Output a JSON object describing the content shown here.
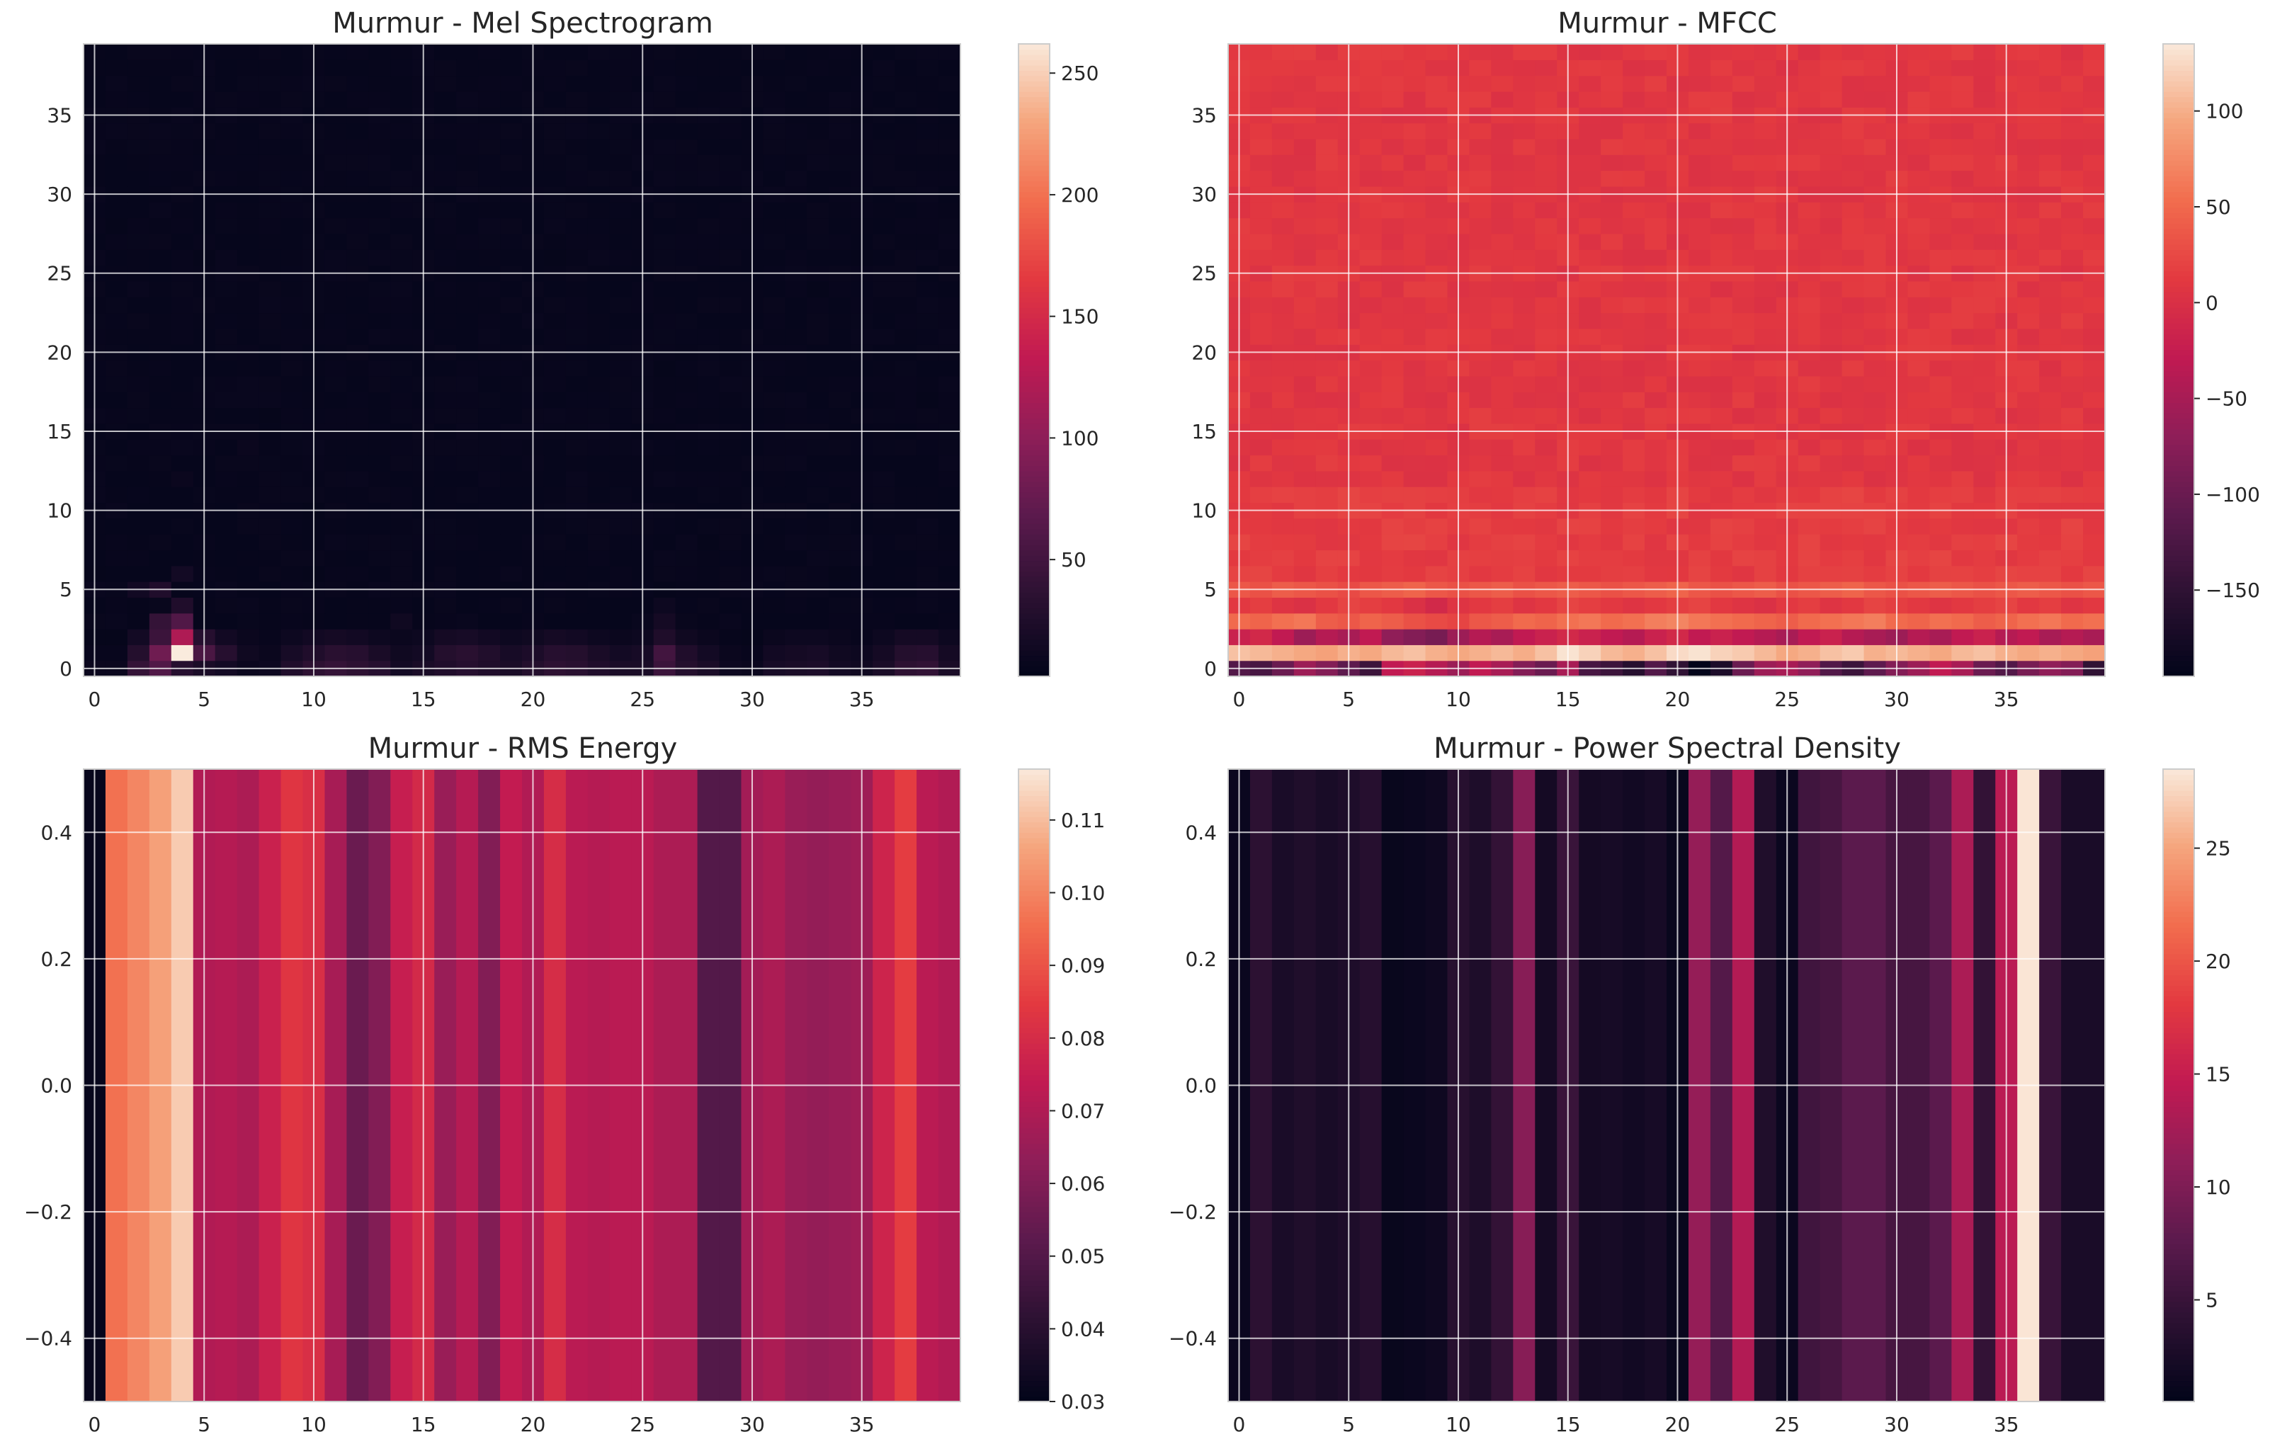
{
  "chart_data": [
    {
      "id": "mel",
      "type": "heatmap",
      "title": "Murmur - Mel Spectrogram",
      "xlabel": "",
      "ylabel": "",
      "xlim": [
        -0.5,
        39.5
      ],
      "ylim": [
        -0.5,
        39.5
      ],
      "xticks": [
        0,
        5,
        10,
        15,
        20,
        25,
        30,
        35
      ],
      "yticks": [
        0,
        5,
        10,
        15,
        20,
        25,
        30,
        35
      ],
      "ytick_labels": [
        "0",
        "5",
        "10",
        "15",
        "20",
        "25",
        "30",
        "35"
      ],
      "colorbar": {
        "range": [
          2,
          262
        ],
        "ticks": [
          50,
          100,
          150,
          200,
          250
        ],
        "labels": [
          "50",
          "100",
          "150",
          "200",
          "250"
        ]
      },
      "n_cols": 40,
      "n_rows": 40,
      "row0": [
        8,
        8,
        40,
        60,
        30,
        20,
        15,
        8,
        10,
        25,
        35,
        40,
        35,
        30,
        15,
        20,
        25,
        30,
        25,
        20,
        28,
        35,
        32,
        25,
        20,
        20,
        45,
        28,
        20,
        10,
        8,
        18,
        20,
        22,
        15,
        12,
        20,
        35,
        38,
        20
      ],
      "row1": [
        6,
        6,
        28,
        80,
        262,
        55,
        30,
        12,
        8,
        18,
        25,
        32,
        30,
        20,
        12,
        15,
        28,
        32,
        26,
        18,
        22,
        30,
        28,
        20,
        15,
        18,
        50,
        25,
        15,
        8,
        6,
        14,
        16,
        18,
        12,
        10,
        16,
        28,
        30,
        16
      ],
      "row2": [
        4,
        4,
        15,
        45,
        120,
        30,
        14,
        8,
        6,
        10,
        14,
        16,
        14,
        10,
        8,
        10,
        16,
        18,
        14,
        10,
        12,
        16,
        14,
        10,
        8,
        10,
        24,
        12,
        8,
        5,
        4,
        8,
        10,
        10,
        8,
        6,
        10,
        16,
        16,
        10
      ],
      "bright": [
        [
          4,
          3,
          60
        ],
        [
          3,
          3,
          40
        ],
        [
          4,
          4,
          25
        ],
        [
          3,
          5,
          25
        ],
        [
          4,
          6,
          15
        ],
        [
          2,
          5,
          14
        ],
        [
          26,
          3,
          16
        ],
        [
          26,
          4,
          10
        ],
        [
          7,
          14,
          8
        ],
        [
          7,
          20,
          6
        ],
        [
          4,
          12,
          8
        ],
        [
          14,
          3,
          12
        ]
      ],
      "base": 4
    },
    {
      "id": "mfcc",
      "type": "heatmap",
      "title": "Murmur - MFCC",
      "xlabel": "",
      "ylabel": "",
      "xlim": [
        -0.5,
        39.5
      ],
      "ylim": [
        -0.5,
        39.5
      ],
      "xticks": [
        0,
        5,
        10,
        15,
        20,
        25,
        30,
        35
      ],
      "yticks": [
        0,
        5,
        10,
        15,
        20,
        25,
        30,
        35
      ],
      "ytick_labels": [
        "0",
        "5",
        "10",
        "15",
        "20",
        "25",
        "30",
        "35"
      ],
      "colorbar": {
        "range": [
          -195,
          135
        ],
        "ticks": [
          -150,
          -100,
          -50,
          0,
          50,
          100
        ],
        "labels": [
          "−150",
          "−100",
          "−50",
          "0",
          "50",
          "100"
        ]
      },
      "n_cols": 40,
      "n_rows": 40,
      "row0": [
        -120,
        -130,
        -100,
        -60,
        -80,
        -110,
        -140,
        -30,
        -20,
        -40,
        -60,
        -30,
        -50,
        -80,
        -100,
        -50,
        -130,
        -140,
        -160,
        -120,
        -150,
        -195,
        -170,
        -100,
        -60,
        -50,
        -70,
        -120,
        -140,
        -110,
        -80,
        -60,
        -30,
        -50,
        -100,
        -120,
        -90,
        -70,
        -80,
        -150
      ],
      "row1": [
        110,
        105,
        100,
        95,
        90,
        100,
        95,
        105,
        110,
        100,
        95,
        100,
        105,
        98,
        110,
        130,
        120,
        105,
        100,
        110,
        125,
        130,
        120,
        115,
        105,
        95,
        100,
        110,
        115,
        100,
        105,
        100,
        95,
        105,
        110,
        100,
        95,
        100,
        95,
        90
      ],
      "row2": [
        -20,
        -10,
        -30,
        -60,
        -40,
        -50,
        -30,
        -70,
        -80,
        -90,
        -60,
        -40,
        -50,
        -30,
        -20,
        -10,
        -20,
        -30,
        -40,
        -20,
        -10,
        -30,
        -20,
        -30,
        -40,
        -50,
        -30,
        -20,
        -40,
        -50,
        -60,
        -40,
        -50,
        -30,
        -20,
        -40,
        -30,
        -50,
        -40,
        -50
      ],
      "row3": [
        50,
        45,
        55,
        60,
        40,
        35,
        45,
        40,
        30,
        25,
        20,
        35,
        40,
        50,
        45,
        55,
        60,
        50,
        55,
        65,
        70,
        60,
        55,
        50,
        45,
        40,
        50,
        55,
        60,
        65,
        50,
        45,
        55,
        50,
        40,
        45,
        55,
        60,
        50,
        55
      ],
      "row4": [
        10,
        15,
        5,
        0,
        10,
        20,
        15,
        10,
        0,
        -10,
        5,
        10,
        15,
        5,
        10,
        20,
        15,
        10,
        5,
        10,
        15,
        20,
        10,
        5,
        0,
        10,
        15,
        5,
        10,
        20,
        15,
        10,
        5,
        10,
        15,
        20,
        10,
        15,
        5,
        10
      ],
      "row5": [
        35,
        30,
        40,
        35,
        30,
        25,
        35,
        40,
        45,
        35,
        30,
        35,
        40,
        30,
        35,
        40,
        35,
        30,
        35,
        40,
        45,
        35,
        30,
        35,
        40,
        30,
        35,
        40,
        45,
        35,
        30,
        35,
        40,
        35,
        30,
        35,
        40,
        35,
        30,
        35
      ],
      "base": 8,
      "amp": 7
    },
    {
      "id": "rms",
      "type": "heatmap",
      "title": "Murmur - RMS Energy",
      "xlabel": "",
      "ylabel": "",
      "xlim": [
        -0.5,
        39.5
      ],
      "ylim": [
        -0.5,
        0.5
      ],
      "xticks": [
        0,
        5,
        10,
        15,
        20,
        25,
        30,
        35
      ],
      "yticks": [
        -0.4,
        -0.2,
        0.0,
        0.2,
        0.4
      ],
      "ytick_labels": [
        "−0.4",
        "−0.2",
        "0.0",
        "0.2",
        "0.4"
      ],
      "colorbar": {
        "range": [
          0.03,
          0.117
        ],
        "ticks": [
          0.03,
          0.04,
          0.05,
          0.06,
          0.07,
          0.08,
          0.09,
          0.1,
          0.11
        ],
        "labels": [
          "0.03",
          "0.04",
          "0.05",
          "0.06",
          "0.07",
          "0.08",
          "0.09",
          "0.10",
          "0.11"
        ]
      },
      "values": [
        0.031,
        0.096,
        0.1,
        0.105,
        0.112,
        0.07,
        0.071,
        0.069,
        0.076,
        0.083,
        0.081,
        0.068,
        0.055,
        0.06,
        0.075,
        0.079,
        0.065,
        0.071,
        0.06,
        0.074,
        0.07,
        0.08,
        0.072,
        0.071,
        0.072,
        0.072,
        0.069,
        0.069,
        0.05,
        0.05,
        0.067,
        0.069,
        0.065,
        0.064,
        0.065,
        0.066,
        0.077,
        0.085,
        0.072,
        0.07
      ]
    },
    {
      "id": "psd",
      "type": "heatmap",
      "title": "Murmur - Power Spectral Density",
      "xlabel": "",
      "ylabel": "",
      "xlim": [
        -0.5,
        39.5
      ],
      "ylim": [
        -0.5,
        0.5
      ],
      "xticks": [
        0,
        5,
        10,
        15,
        20,
        25,
        30,
        35
      ],
      "yticks": [
        -0.4,
        -0.2,
        0.0,
        0.2,
        0.4
      ],
      "ytick_labels": [
        "−0.4",
        "−0.2",
        "0.0",
        "0.2",
        "0.4"
      ],
      "colorbar": {
        "range": [
          0.5,
          28.5
        ],
        "ticks": [
          5,
          10,
          15,
          20,
          25
        ],
        "labels": [
          "5",
          "10",
          "15",
          "20",
          "25"
        ]
      },
      "values": [
        1.2,
        4.0,
        2.5,
        3.0,
        2.4,
        2.8,
        3.5,
        1.0,
        1.2,
        1.5,
        3.6,
        2.8,
        4.5,
        10.5,
        2.0,
        5.0,
        2.0,
        2.2,
        1.8,
        2.2,
        1.0,
        11.5,
        7.0,
        13.5,
        3.0,
        1.2,
        5.5,
        6.0,
        7.5,
        7.5,
        6.0,
        6.0,
        7.5,
        13.0,
        4.5,
        14.0,
        28.2,
        5.0,
        2.5,
        2.5
      ]
    }
  ]
}
